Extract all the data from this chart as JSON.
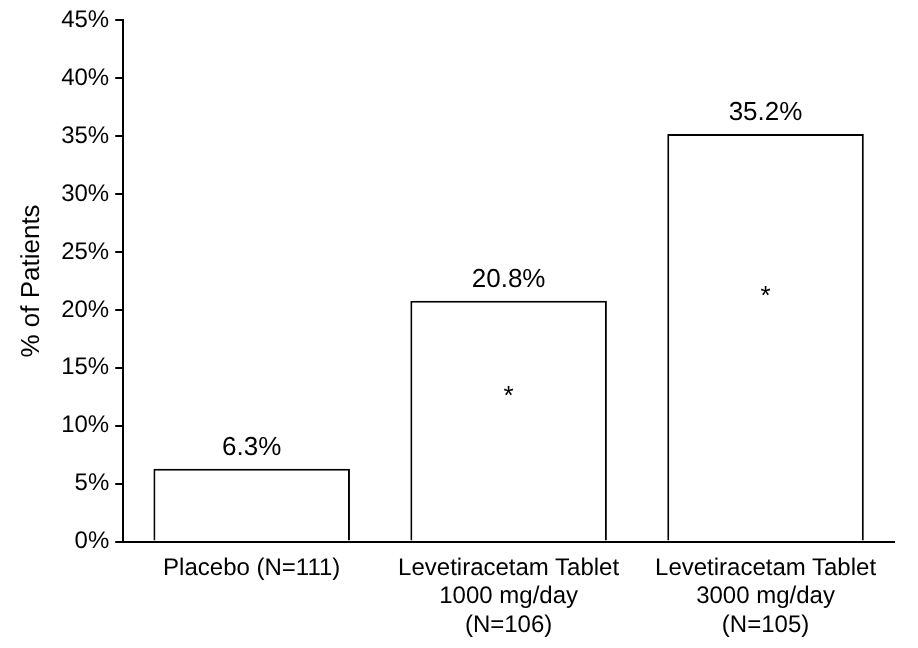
{
  "chart_data": {
    "type": "bar",
    "ylabel": "% of Patients",
    "categories": [
      "Placebo (N=111)",
      "Levetiracetam Tablet\n1000 mg/day\n(N=106)",
      "Levetiracetam Tablet\n3000 mg/day\n(N=105)"
    ],
    "values": [
      6.3,
      20.8,
      35.2
    ],
    "color": "#ffffff",
    "ylim": [
      0,
      45
    ],
    "yticks": [
      {
        "value": 0,
        "label": "0%"
      },
      {
        "value": 5,
        "label": "5%"
      },
      {
        "value": 10,
        "label": "10%"
      },
      {
        "value": 15,
        "label": "15%"
      },
      {
        "value": 20,
        "label": "20%"
      },
      {
        "value": 25,
        "label": "25%"
      },
      {
        "value": 30,
        "label": "30%"
      },
      {
        "value": 35,
        "label": "35%"
      },
      {
        "value": 40,
        "label": "40%"
      },
      {
        "value": 45,
        "label": "45%"
      }
    ],
    "value_labels": [
      "6.3%",
      "20.8%",
      "35.2%"
    ],
    "grid": false,
    "legend": false,
    "annotations": [
      "*",
      "*"
    ]
  }
}
